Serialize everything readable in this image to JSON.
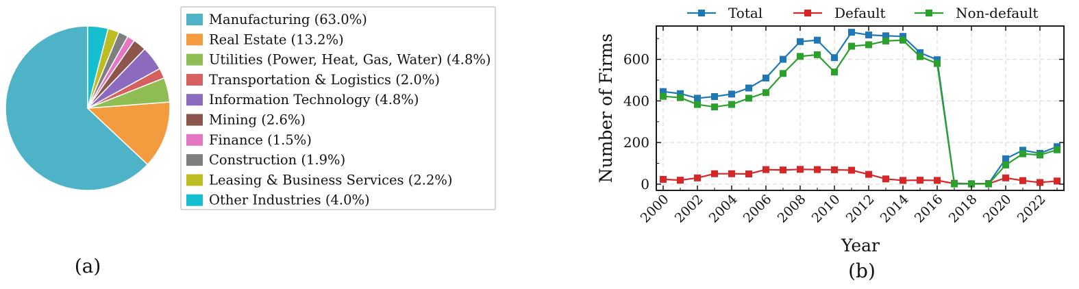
{
  "chart_data": [
    {
      "type": "pie",
      "panel_label": "(a)",
      "slices": [
        {
          "label": "Manufacturing (63.0%)",
          "value": 63.0,
          "color": "#4eb3c6"
        },
        {
          "label": "Real Estate (13.2%)",
          "value": 13.2,
          "color": "#f39c3f"
        },
        {
          "label": "Utilities (Power, Heat, Gas, Water) (4.8%)",
          "value": 4.8,
          "color": "#8fbc53"
        },
        {
          "label": "Transportation & Logistics (2.0%)",
          "value": 2.0,
          "color": "#d65f5f"
        },
        {
          "label": "Information Technology (4.8%)",
          "value": 4.8,
          "color": "#8c6bbf"
        },
        {
          "label": "Mining (2.6%)",
          "value": 2.6,
          "color": "#8c564b"
        },
        {
          "label": "Finance (1.5%)",
          "value": 1.5,
          "color": "#e377c2"
        },
        {
          "label": "Construction (1.9%)",
          "value": 1.9,
          "color": "#7f7f7f"
        },
        {
          "label": "Leasing & Business Services (2.2%)",
          "value": 2.2,
          "color": "#bcbd22"
        },
        {
          "label": "Other Industries (4.0%)",
          "value": 4.0,
          "color": "#17becf"
        }
      ],
      "start_angle_deg": 90,
      "direction": "counterclockwise",
      "legend_position": "right"
    },
    {
      "type": "line",
      "panel_label": "(b)",
      "xlabel": "Year",
      "ylabel": "Number of Firms",
      "x": [
        2000,
        2001,
        2002,
        2003,
        2004,
        2005,
        2006,
        2007,
        2008,
        2009,
        2010,
        2011,
        2012,
        2013,
        2014,
        2015,
        2016,
        2017,
        2018,
        2019,
        2020,
        2021,
        2022,
        2023
      ],
      "xticks": [
        "2000",
        "2002",
        "2004",
        "2006",
        "2008",
        "2010",
        "2012",
        "2014",
        "2016",
        "2018",
        "2020",
        "2022"
      ],
      "yticks": [
        "0",
        "200",
        "400",
        "600"
      ],
      "xlim": [
        1999.6,
        2023.4
      ],
      "ylim": [
        -30,
        760
      ],
      "grid": true,
      "legend_position": "top",
      "series": [
        {
          "name": "Total",
          "color": "#1f77b4",
          "values": [
            445,
            435,
            413,
            421,
            433,
            462,
            510,
            600,
            685,
            692,
            608,
            730,
            717,
            713,
            710,
            632,
            598,
            4,
            2,
            3,
            122,
            163,
            148,
            180
          ]
        },
        {
          "name": "Default",
          "color": "#d62728",
          "values": [
            23,
            19,
            30,
            50,
            50,
            49,
            70,
            68,
            71,
            70,
            69,
            67,
            47,
            25,
            18,
            19,
            18,
            3,
            1,
            2,
            30,
            17,
            8,
            15
          ]
        },
        {
          "name": "Non-default",
          "color": "#2ca02c",
          "values": [
            422,
            416,
            383,
            371,
            383,
            413,
            440,
            532,
            614,
            622,
            539,
            663,
            670,
            688,
            692,
            613,
            580,
            1,
            1,
            1,
            92,
            146,
            140,
            165
          ]
        }
      ]
    }
  ]
}
